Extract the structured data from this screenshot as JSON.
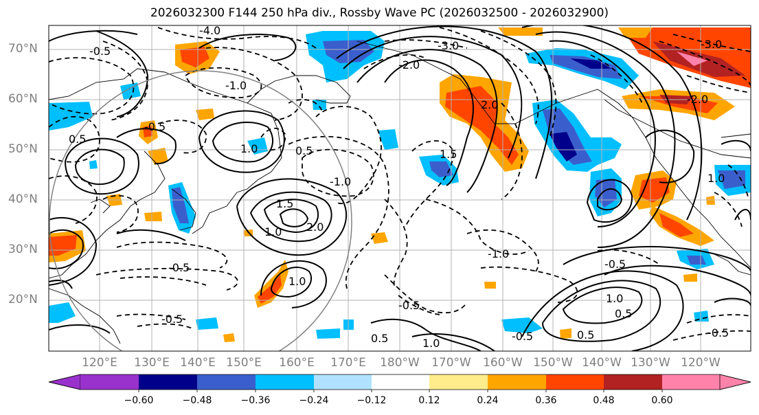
{
  "title": "2026032300 F144 250 hPa div., Rossby Wave PC (2026032500 - 2026032900)",
  "lat_labels": [
    "70°N",
    "60°N",
    "50°N",
    "40°N",
    "30°N",
    "20°N"
  ],
  "lon_labels": [
    "120°E",
    "130°E",
    "140°E",
    "150°E",
    "160°E",
    "170°E",
    "180°W",
    "170°W",
    "160°W",
    "150°W",
    "140°W",
    "130°W",
    "120°W"
  ],
  "colorbar": {
    "ticks": [
      "−0.60",
      "−0.48",
      "−0.36",
      "−0.24",
      "−0.12",
      "0.12",
      "0.24",
      "0.36",
      "0.48",
      "0.60"
    ],
    "colors": [
      "#9932cc",
      "#00008b",
      "#3a5fcd",
      "#00bfff",
      "#b0e2ff",
      "#ffffff",
      "#ffec8b",
      "#ffa500",
      "#ff4500",
      "#b22222",
      "#ff82ab"
    ]
  },
  "contour_labels": {
    "solid": [
      "1.0",
      "1.5",
      "2.0",
      "0.5",
      "1.0",
      "0.5",
      "1.0",
      "1.5",
      "0.5",
      "2.0",
      "0.5",
      "1.0",
      "0.5",
      "1.0",
      "1.5",
      "2.0",
      "0.5",
      "0.5",
      "1.0",
      "1.5",
      "0.5"
    ],
    "dashed": [
      "-0.5",
      "-4.0",
      "-3.0",
      "-2.0",
      "-1.0",
      "-2.0",
      "-1.0",
      "-0.5",
      "-0.5",
      "-1.0",
      "-0.5",
      "-0.5",
      "-0.5",
      "-0.5",
      "-0.5",
      "-1.0",
      "-0.5",
      "-2.0",
      "-0.5",
      "-0.5",
      "-3.0",
      "-0.5",
      "-0.5",
      "-0.5",
      "-0.5",
      "-0.5",
      "-2.0"
    ]
  }
}
